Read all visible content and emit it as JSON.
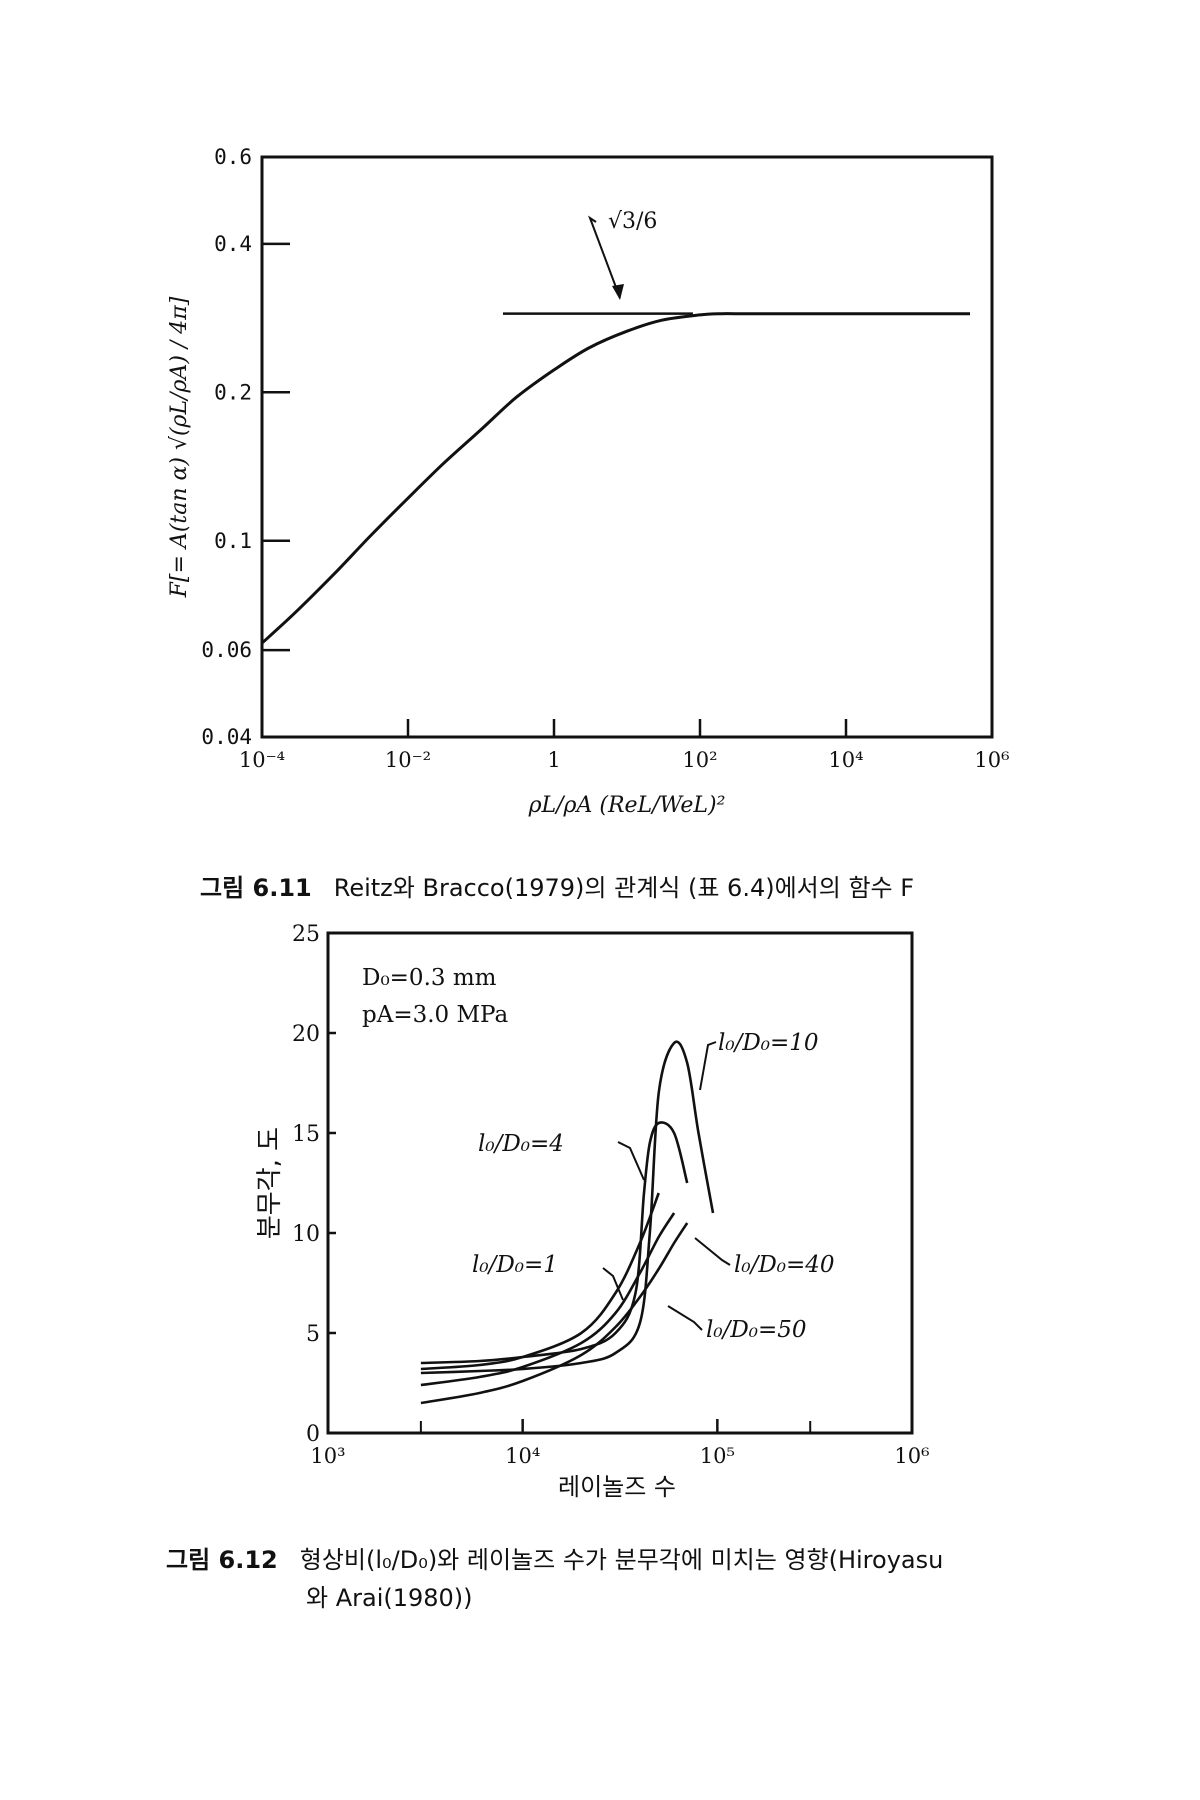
{
  "chart_data": [
    {
      "type": "line",
      "y_scale": "log",
      "x_scale": "log",
      "ylabel": "F[= A(tan α) √(ρL/ρA) / 4π]",
      "xlabel": "ρL/ρA (ReL/WeL)²",
      "xlim": [
        0.0001,
        1000000
      ],
      "ylim": [
        0.04,
        0.6
      ],
      "x_ticks": [
        "10⁻⁴",
        "10⁻²",
        "1",
        "10²",
        "10⁴",
        "10⁶"
      ],
      "y_ticks": [
        "0.04",
        "0.06",
        "0.1",
        "0.2",
        "0.4",
        "0.6"
      ],
      "annotation": "√3/6",
      "asymptote": {
        "y": 0.2887,
        "x": [
          0.2,
          80
        ]
      },
      "series": [
        {
          "x": [
            0.0001,
            0.0003,
            0.001,
            0.003,
            0.01,
            0.03,
            0.1,
            0.3,
            1,
            3,
            10,
            30,
            100,
            200,
            300,
            1000,
            10000,
            100000,
            500000
          ],
          "y": [
            0.062,
            0.072,
            0.086,
            0.102,
            0.122,
            0.143,
            0.168,
            0.195,
            0.222,
            0.246,
            0.266,
            0.28,
            0.287,
            0.2887,
            0.2887,
            0.2887,
            0.2887,
            0.2887,
            0.2887
          ]
        }
      ]
    },
    {
      "type": "line",
      "x_scale": "log",
      "xlabel": "레이놀즈 수",
      "ylabel": "분무각, 도",
      "xlim": [
        1000,
        1000000
      ],
      "ylim": [
        0,
        25
      ],
      "x_ticks": [
        "10³",
        "10⁴",
        "10⁵",
        "10⁶"
      ],
      "y_ticks": [
        "0",
        "5",
        "10",
        "15",
        "20",
        "25"
      ],
      "conditions": [
        "D₀=0.3 mm",
        "pA=3.0 MPa"
      ],
      "series": [
        {
          "name": "l₀/D₀=10",
          "x": [
            3000,
            6000,
            10000,
            20000,
            30000,
            40000,
            45000,
            50000,
            60000,
            70000,
            80000,
            95000
          ],
          "y": [
            3.0,
            3.1,
            3.2,
            3.5,
            4.0,
            5.5,
            10.0,
            17.0,
            19.5,
            18.5,
            15.0,
            11.0
          ]
        },
        {
          "name": "l₀/D₀=4",
          "x": [
            3000,
            6000,
            10000,
            20000,
            30000,
            38000,
            42000,
            45000,
            50000,
            60000,
            70000
          ],
          "y": [
            3.5,
            3.6,
            3.8,
            4.2,
            5.0,
            7.0,
            12.0,
            14.5,
            15.5,
            15.0,
            12.5
          ]
        },
        {
          "name": "l₀/D₀=1",
          "x": [
            3000,
            6000,
            10000,
            20000,
            30000,
            40000,
            50000
          ],
          "y": [
            3.2,
            3.4,
            3.8,
            5.0,
            7.0,
            9.5,
            12.0
          ]
        },
        {
          "name": "l₀/D₀=40",
          "x": [
            3000,
            6000,
            10000,
            20000,
            30000,
            40000,
            50000,
            60000
          ],
          "y": [
            2.4,
            2.8,
            3.3,
            4.5,
            6.0,
            8.0,
            9.8,
            11.0
          ]
        },
        {
          "name": "l₀/D₀=50",
          "x": [
            3000,
            6000,
            10000,
            20000,
            30000,
            40000,
            50000,
            60000,
            70000
          ],
          "y": [
            1.5,
            2.0,
            2.6,
            3.9,
            5.3,
            6.8,
            8.2,
            9.5,
            10.5
          ]
        }
      ]
    }
  ],
  "captions": {
    "fig1": {
      "number": "그림 6.11",
      "text": "Reitz와 Bracco(1979)의 관계식 (표 6.4)에서의 함수 F"
    },
    "fig2": {
      "number": "그림 6.12",
      "line1": "형상비(l₀/D₀)와 레이놀즈 수가 분무각에 미치는 영향(Hiroyasu",
      "line2": "와 Arai(1980))"
    }
  }
}
